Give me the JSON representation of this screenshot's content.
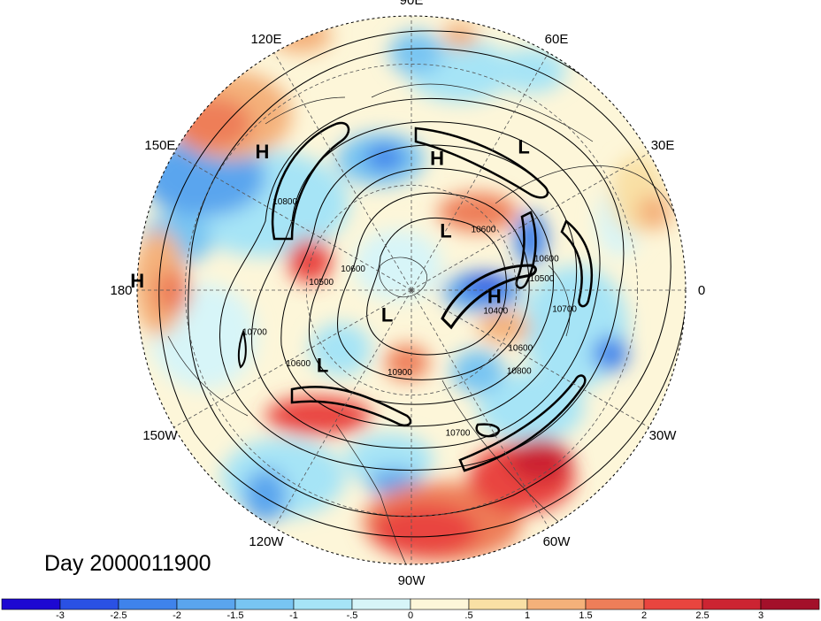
{
  "title": "Day 2000011900",
  "longitude_labels": [
    {
      "text": "90E",
      "lon": 90
    },
    {
      "text": "60E",
      "lon": 60
    },
    {
      "text": "30E",
      "lon": 30
    },
    {
      "text": "0",
      "lon": 0
    },
    {
      "text": "30W",
      "lon": -30
    },
    {
      "text": "60W",
      "lon": -60
    },
    {
      "text": "90W",
      "lon": -90
    },
    {
      "text": "120W",
      "lon": -120
    },
    {
      "text": "150W",
      "lon": -150
    },
    {
      "text": "180",
      "lon": 180
    },
    {
      "text": "150E",
      "lon": 150
    },
    {
      "text": "120E",
      "lon": 120
    }
  ],
  "pressure_centers": [
    {
      "type": "H",
      "lon": 79,
      "lat": 52
    },
    {
      "type": "L",
      "lon": 52,
      "lat": 40
    },
    {
      "type": "H",
      "lon": 137,
      "lat": 35
    },
    {
      "type": "L",
      "lon": 60,
      "lat": 70
    },
    {
      "type": "H",
      "lon": -4,
      "lat": 66
    },
    {
      "type": "L",
      "lon": -135,
      "lat": 80
    },
    {
      "type": "L",
      "lon": -140,
      "lat": 57
    },
    {
      "type": "H",
      "lon": 178,
      "lat": 20
    }
  ],
  "contour_labels": [
    {
      "text": "10800",
      "lon": 145,
      "lat": 47
    },
    {
      "text": "10600",
      "lon": 40,
      "lat": 63
    },
    {
      "text": "10600",
      "lon": 13,
      "lat": 51
    },
    {
      "text": "10500",
      "lon": 5,
      "lat": 53
    },
    {
      "text": "10700",
      "lon": -7,
      "lat": 47
    },
    {
      "text": "10400",
      "lon": -14,
      "lat": 65
    },
    {
      "text": "10600",
      "lon": -28,
      "lat": 55
    },
    {
      "text": "10800",
      "lon": -37,
      "lat": 52
    },
    {
      "text": "10900",
      "lon": -98,
      "lat": 66
    },
    {
      "text": "10700",
      "lon": -72,
      "lat": 48
    },
    {
      "text": "10600",
      "lon": -147,
      "lat": 52
    },
    {
      "text": "10700",
      "lon": -165,
      "lat": 45
    },
    {
      "text": "10500",
      "lon": 175,
      "lat": 64
    },
    {
      "text": "10600",
      "lon": 160,
      "lat": 72
    }
  ],
  "colorbar": {
    "colors": [
      "#1d08d2",
      "#2a51e4",
      "#3f83eb",
      "#5aa5ee",
      "#78c5f2",
      "#a6e4f6",
      "#d7f5f8",
      "#fdf6d9",
      "#f9e0a5",
      "#f4b17a",
      "#ee7e59",
      "#e9453f",
      "#cc2432",
      "#a3102a"
    ],
    "tick_labels": [
      "-3",
      "-2.5",
      "-2",
      "-1.5",
      "-1",
      "-.5",
      "0",
      ".5",
      "1",
      "1.5",
      "2",
      "2.5",
      "3"
    ]
  }
}
